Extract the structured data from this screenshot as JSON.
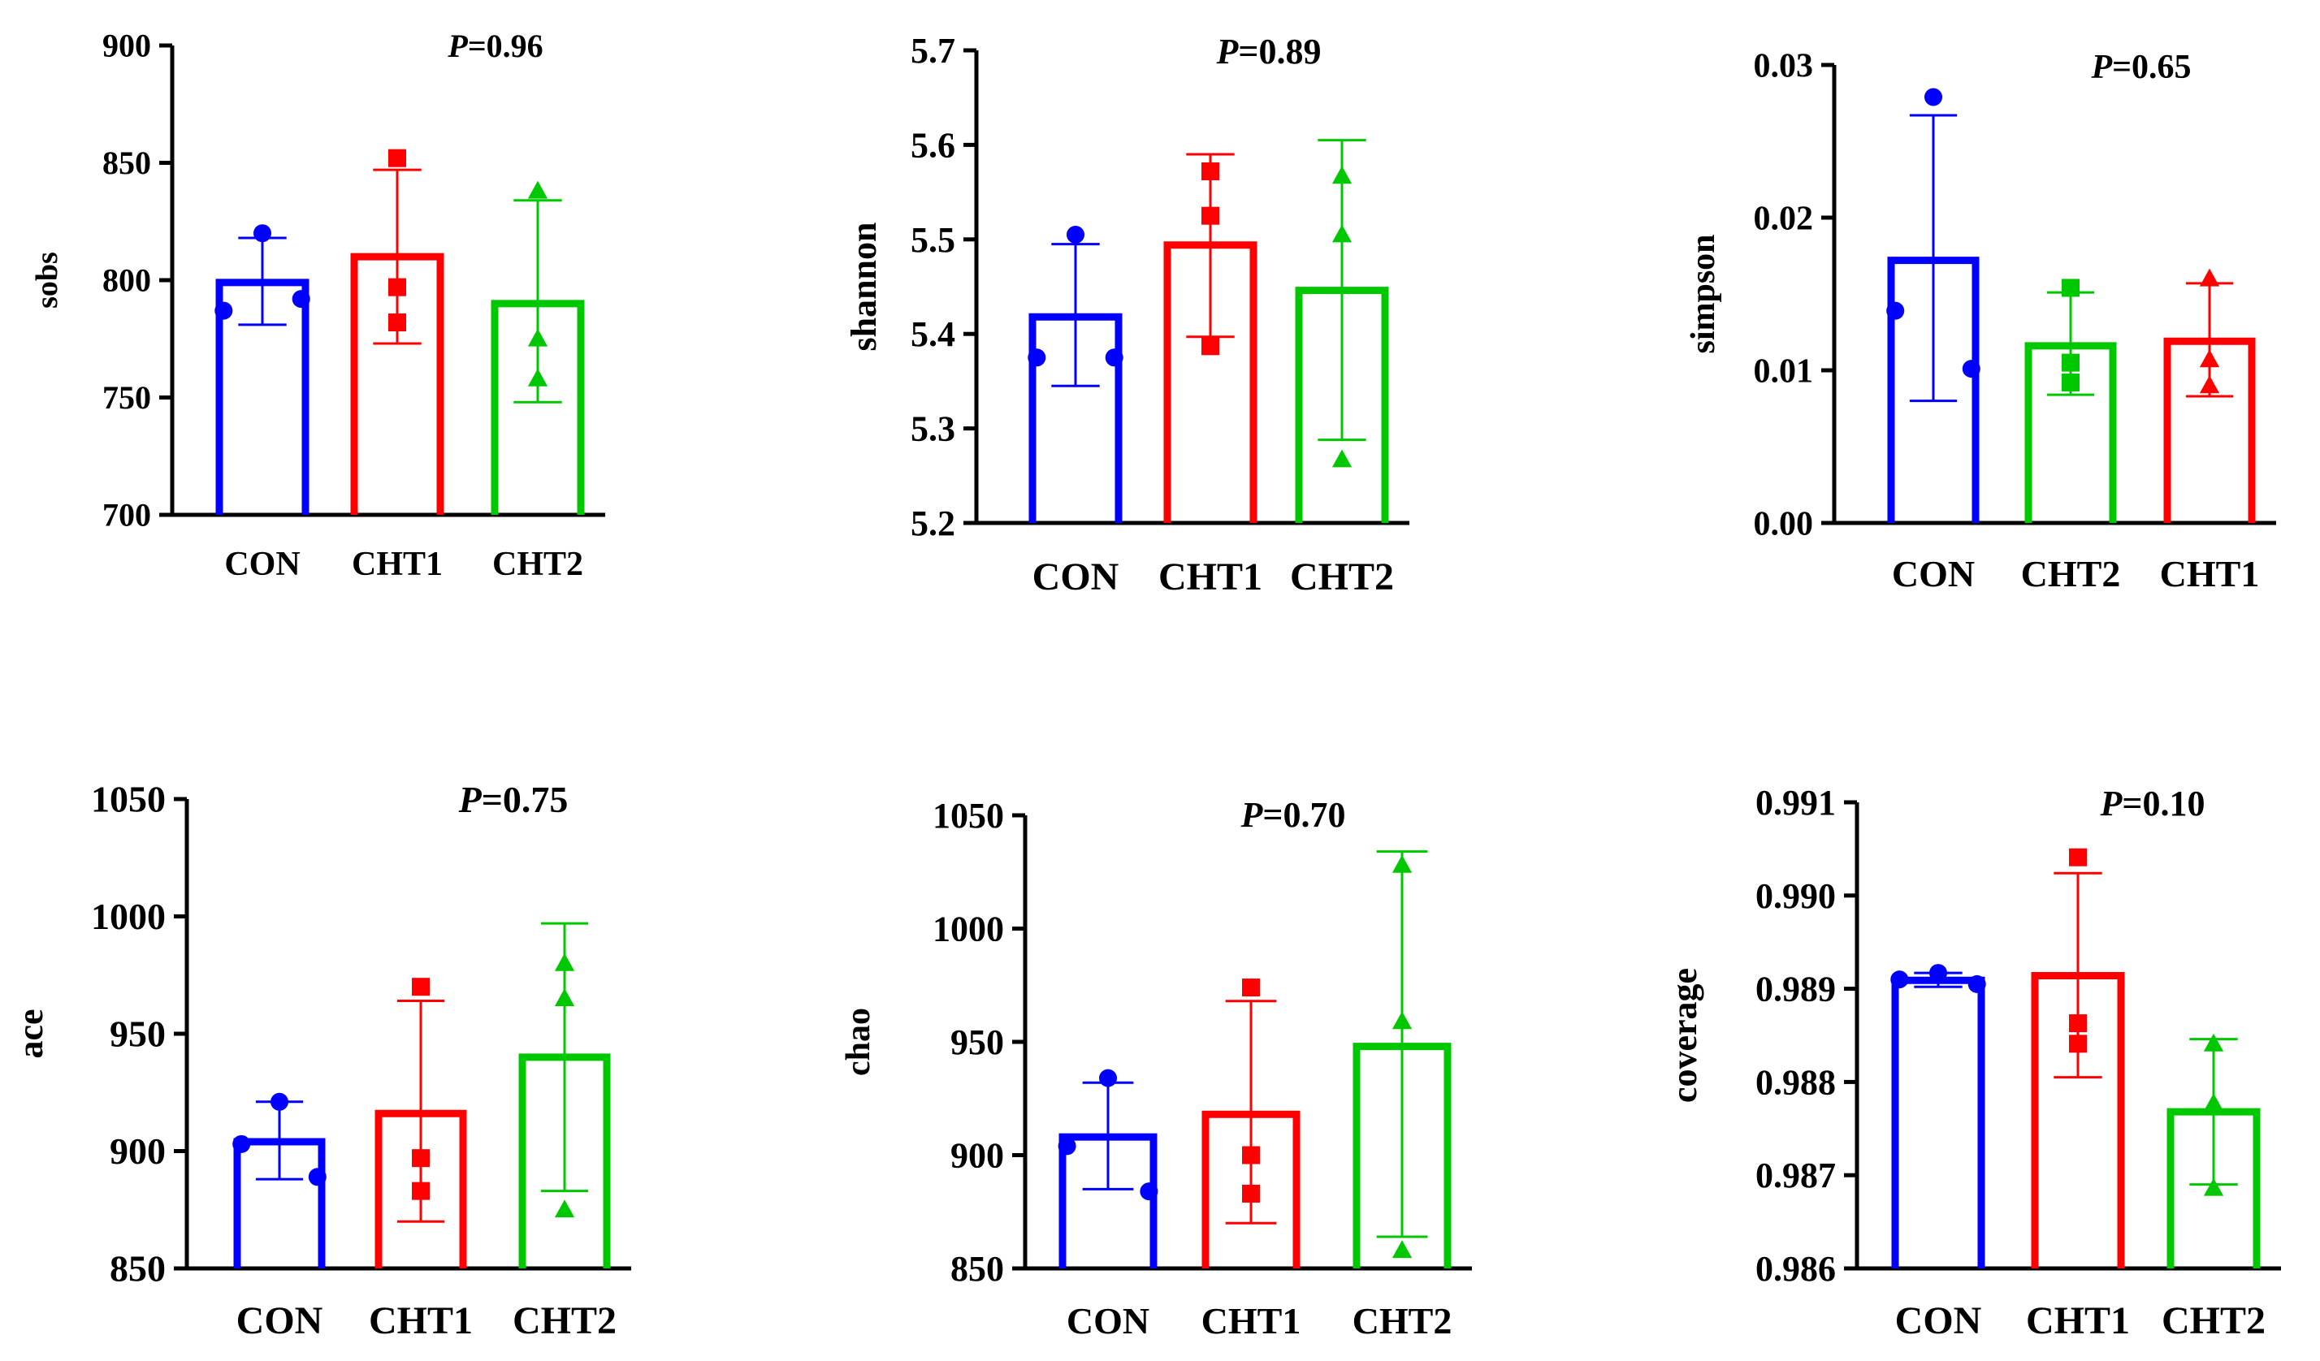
{
  "figure": {
    "title": ""
  },
  "colors": {
    "CON": "#0000ff",
    "CHT1": "#ff0000",
    "CHT2": "#00c800"
  },
  "chart_data": [
    {
      "type": "bar",
      "panel": "sobs",
      "ylabel": "sobs",
      "pvalue": "P=0.96",
      "ylim": [
        700,
        900
      ],
      "yticks": [
        "700",
        "750",
        "800",
        "850",
        "900"
      ],
      "categories": [
        "CON",
        "CHT1",
        "CHT2"
      ],
      "series": [
        {
          "name": "CON",
          "mean": 799,
          "sd_low": 781,
          "sd_high": 818,
          "points": [
            820,
            787,
            792
          ],
          "marker": "circle"
        },
        {
          "name": "CHT1",
          "mean": 810,
          "sd_low": 773,
          "sd_high": 847,
          "points": [
            852,
            797,
            782
          ],
          "marker": "square"
        },
        {
          "name": "CHT2",
          "mean": 790,
          "sd_low": 748,
          "sd_high": 834,
          "points": [
            838,
            775,
            758
          ],
          "marker": "triangle"
        }
      ]
    },
    {
      "type": "bar",
      "panel": "shannon",
      "ylabel": "shannon",
      "pvalue": "P=0.89",
      "ylim": [
        5.2,
        5.7
      ],
      "yticks": [
        "5.2",
        "5.3",
        "5.4",
        "5.5",
        "5.6",
        "5.7"
      ],
      "categories": [
        "CON",
        "CHT1",
        "CHT2"
      ],
      "series": [
        {
          "name": "CON",
          "mean": 5.418,
          "sd_low": 5.345,
          "sd_high": 5.495,
          "points": [
            5.505,
            5.375,
            5.375
          ],
          "marker": "circle"
        },
        {
          "name": "CHT1",
          "mean": 5.494,
          "sd_low": 5.397,
          "sd_high": 5.59,
          "points": [
            5.572,
            5.525,
            5.387
          ],
          "marker": "square"
        },
        {
          "name": "CHT2",
          "mean": 5.446,
          "sd_low": 5.288,
          "sd_high": 5.605,
          "points": [
            5.567,
            5.505,
            5.267
          ],
          "marker": "triangle"
        }
      ]
    },
    {
      "type": "bar",
      "panel": "simpson",
      "ylabel": "simpson",
      "pvalue": "P=0.65",
      "ylim": [
        0,
        0.03
      ],
      "yticks": [
        "0.00",
        "0.01",
        "0.02",
        "0.03"
      ],
      "categories": [
        "CON",
        "CHT2",
        "CHT1"
      ],
      "series": [
        {
          "name": "CON",
          "mean": 0.0172,
          "sd_low": 0.008,
          "sd_high": 0.0267,
          "points": [
            0.0279,
            0.0139,
            0.0101
          ],
          "marker": "circle"
        },
        {
          "name": "CHT2",
          "mean": 0.0116,
          "sd_low": 0.0084,
          "sd_high": 0.0151,
          "points": [
            0.0154,
            0.0105,
            0.0092
          ],
          "marker": "square"
        },
        {
          "name": "CHT1",
          "mean": 0.0119,
          "sd_low": 0.0083,
          "sd_high": 0.0157,
          "points": [
            0.016,
            0.0107,
            0.009
          ],
          "marker": "triangle"
        }
      ]
    },
    {
      "type": "bar",
      "panel": "ace",
      "ylabel": "ace",
      "pvalue": "P=0.75",
      "ylim": [
        850,
        1050
      ],
      "yticks": [
        "850",
        "900",
        "950",
        "1000",
        "1050"
      ],
      "categories": [
        "CON",
        "CHT1",
        "CHT2"
      ],
      "series": [
        {
          "name": "CON",
          "mean": 904,
          "sd_low": 888,
          "sd_high": 921,
          "points": [
            921,
            903,
            889
          ],
          "marker": "circle"
        },
        {
          "name": "CHT1",
          "mean": 916,
          "sd_low": 870,
          "sd_high": 964,
          "points": [
            970,
            897,
            883
          ],
          "marker": "square"
        },
        {
          "name": "CHT2",
          "mean": 940,
          "sd_low": 883,
          "sd_high": 997,
          "points": [
            980,
            965,
            875
          ],
          "marker": "triangle"
        }
      ]
    },
    {
      "type": "bar",
      "panel": "chao",
      "ylabel": "chao",
      "pvalue": "P=0.70",
      "ylim": [
        850,
        1050
      ],
      "yticks": [
        "850",
        "900",
        "950",
        "1000",
        "1050"
      ],
      "categories": [
        "CON",
        "CHT1",
        "CHT2"
      ],
      "series": [
        {
          "name": "CON",
          "mean": 908,
          "sd_low": 885,
          "sd_high": 932,
          "points": [
            934,
            904,
            884
          ],
          "marker": "circle"
        },
        {
          "name": "CHT1",
          "mean": 918,
          "sd_low": 870,
          "sd_high": 968,
          "points": [
            974,
            900,
            883
          ],
          "marker": "square"
        },
        {
          "name": "CHT2",
          "mean": 948,
          "sd_low": 864,
          "sd_high": 1034,
          "points": [
            1028,
            959,
            858
          ],
          "marker": "triangle"
        }
      ]
    },
    {
      "type": "bar",
      "panel": "coverage",
      "ylabel": "coverage",
      "pvalue": "P=0.10",
      "ylim": [
        0.986,
        0.991
      ],
      "yticks": [
        "0.986",
        "0.987",
        "0.988",
        "0.989",
        "0.990",
        "0.991"
      ],
      "categories": [
        "CON",
        "CHT1",
        "CHT2"
      ],
      "series": [
        {
          "name": "CON",
          "mean": 0.98909,
          "sd_low": 0.98902,
          "sd_high": 0.98917,
          "points": [
            0.98917,
            0.9891,
            0.98905
          ],
          "marker": "circle"
        },
        {
          "name": "CHT1",
          "mean": 0.98914,
          "sd_low": 0.98805,
          "sd_high": 0.99024,
          "points": [
            0.99041,
            0.98863,
            0.98841
          ],
          "marker": "square"
        },
        {
          "name": "CHT2",
          "mean": 0.98768,
          "sd_low": 0.9869,
          "sd_high": 0.98846,
          "points": [
            0.98841,
            0.98777,
            0.98686
          ],
          "marker": "triangle"
        }
      ]
    }
  ]
}
